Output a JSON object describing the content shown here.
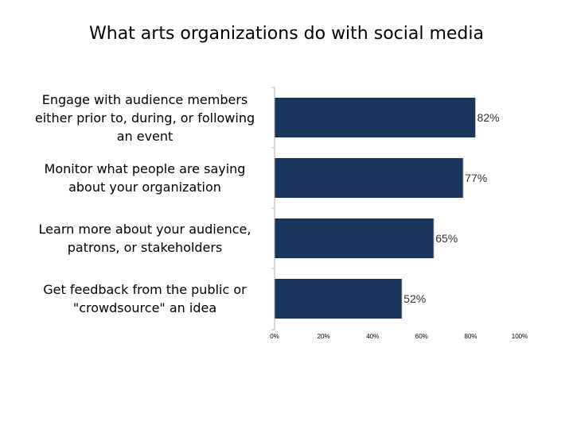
{
  "chart_data": {
    "type": "bar",
    "orientation": "horizontal",
    "title": "What arts organizations do with social media",
    "categories": [
      "Engage with audience members either prior to, during, or following an event",
      "Monitor what people are saying about your organization",
      "Learn more about your audience, patrons, or stakeholders",
      "Get feedback from the public or \"crowdsource\" an idea"
    ],
    "values": [
      82,
      77,
      65,
      52
    ],
    "data_labels": [
      "82%",
      "77%",
      "65%",
      "52%"
    ],
    "xlim": [
      0,
      100
    ],
    "x_ticks": [
      0,
      20,
      40,
      60,
      80,
      100
    ],
    "x_tick_labels": [
      "0%",
      "20%",
      "40%",
      "60%",
      "80%",
      "100%"
    ],
    "bar_color": "#1b365d",
    "grid": false,
    "legend": false
  }
}
